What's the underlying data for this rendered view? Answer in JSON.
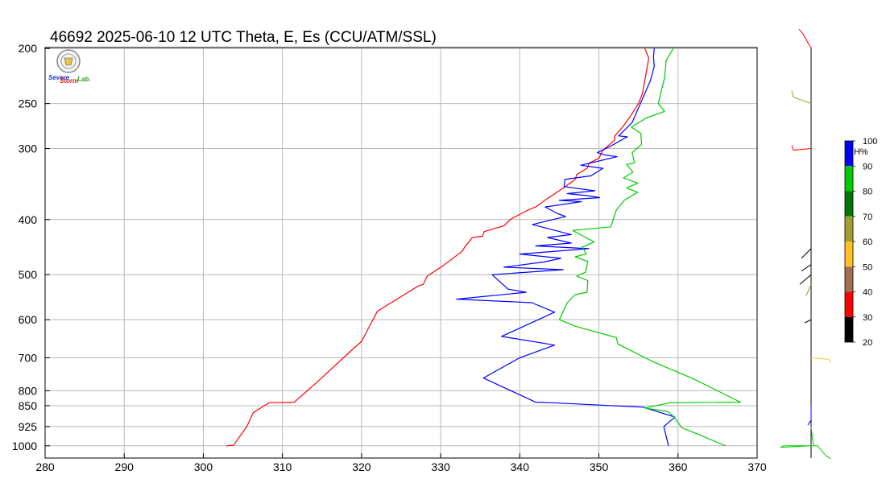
{
  "chart_data": {
    "type": "line",
    "title": "46692  2025-06-10 12 UTC  Theta, E, Es (CCU/ATM/SSL)",
    "xlabel": "",
    "ylabel": "",
    "x_scale": "linear",
    "y_scale": "log-pressure (inverted)",
    "xlim": [
      280,
      370
    ],
    "ylim": [
      1000,
      200
    ],
    "grid": true,
    "x_ticks": [
      "280",
      "290",
      "300",
      "310",
      "320",
      "330",
      "340",
      "350",
      "360",
      "370"
    ],
    "y_ticks": [
      "200",
      "250",
      "300",
      "400",
      "500",
      "600",
      "700",
      "800",
      "850",
      "925",
      "1000"
    ],
    "series": [
      {
        "color": "#ff0000",
        "points": [
          [
            302.9,
            1000
          ],
          [
            303.8,
            998
          ],
          [
            305.5,
            925
          ],
          [
            306.3,
            875
          ],
          [
            308.3,
            840
          ],
          [
            311.5,
            838
          ],
          [
            314.5,
            770
          ],
          [
            318.2,
            690
          ],
          [
            320,
            655
          ],
          [
            322,
            580
          ],
          [
            327,
            525
          ],
          [
            327.8,
            520
          ],
          [
            328.3,
            503
          ],
          [
            330.5,
            480
          ],
          [
            332.7,
            455
          ],
          [
            333,
            448
          ],
          [
            334,
            430
          ],
          [
            335.3,
            428
          ],
          [
            335.5,
            420
          ],
          [
            338,
            410
          ],
          [
            338.8,
            400
          ],
          [
            339.5,
            395
          ],
          [
            341,
            385
          ],
          [
            342,
            380
          ],
          [
            343.4,
            368
          ],
          [
            345.5,
            352
          ],
          [
            347,
            340
          ],
          [
            347.2,
            333
          ],
          [
            348.5,
            325
          ],
          [
            348.8,
            318
          ],
          [
            350,
            312
          ],
          [
            350.5,
            302
          ],
          [
            352,
            290
          ],
          [
            352,
            285
          ],
          [
            353,
            275
          ],
          [
            354,
            263
          ],
          [
            355,
            250
          ],
          [
            355.5,
            240
          ],
          [
            356,
            220
          ],
          [
            356.3,
            208
          ],
          [
            355.8,
            200
          ]
        ]
      },
      {
        "color": "#0000ff",
        "points": [
          [
            358.8,
            1000
          ],
          [
            358.2,
            925
          ],
          [
            359.6,
            890
          ],
          [
            355.6,
            855
          ],
          [
            344,
            840
          ],
          [
            342,
            838
          ],
          [
            335.4,
            760
          ],
          [
            340,
            700
          ],
          [
            344.4,
            665
          ],
          [
            337.7,
            642
          ],
          [
            344.4,
            582
          ],
          [
            341.5,
            560
          ],
          [
            332,
            552
          ],
          [
            340.8,
            537
          ],
          [
            338.5,
            530
          ],
          [
            336.5,
            500
          ],
          [
            345.5,
            490
          ],
          [
            338,
            485
          ],
          [
            343,
            475
          ],
          [
            345.2,
            468
          ],
          [
            340,
            460
          ],
          [
            348.7,
            450
          ],
          [
            342,
            445
          ],
          [
            346.5,
            440
          ],
          [
            343.5,
            430
          ],
          [
            346.5,
            425
          ],
          [
            341.6,
            408
          ],
          [
            345.8,
            395
          ],
          [
            344.7,
            390
          ],
          [
            343.2,
            380
          ],
          [
            347.8,
            372
          ],
          [
            345,
            370
          ],
          [
            350.1,
            366
          ],
          [
            348.5,
            363
          ],
          [
            346,
            360
          ],
          [
            349.5,
            356
          ],
          [
            345.6,
            350
          ],
          [
            345.7,
            340
          ],
          [
            349,
            335
          ],
          [
            350.5,
            325
          ],
          [
            347.7,
            321
          ],
          [
            352.3,
            310
          ],
          [
            350.8,
            308
          ],
          [
            349.8,
            305
          ],
          [
            351.3,
            298
          ],
          [
            353.6,
            286
          ],
          [
            352.5,
            285
          ],
          [
            354.2,
            270
          ],
          [
            356.5,
            228
          ],
          [
            357,
            215
          ],
          [
            356.9,
            207
          ],
          [
            357,
            200
          ]
        ]
      },
      {
        "color": "#00cc00",
        "points": [
          [
            366,
            1000
          ],
          [
            363,
            960
          ],
          [
            360.5,
            930
          ],
          [
            359.5,
            890
          ],
          [
            358.7,
            870
          ],
          [
            355.8,
            858
          ],
          [
            359,
            840
          ],
          [
            367.9,
            838
          ],
          [
            362,
            763
          ],
          [
            356.9,
            712
          ],
          [
            352.4,
            662
          ],
          [
            352.2,
            645
          ],
          [
            347,
            616
          ],
          [
            345,
            600
          ],
          [
            346,
            560
          ],
          [
            347,
            542
          ],
          [
            348.5,
            537
          ],
          [
            348.6,
            512
          ],
          [
            347.2,
            503
          ],
          [
            348.3,
            495
          ],
          [
            348.6,
            474
          ],
          [
            347,
            465
          ],
          [
            348.4,
            460
          ],
          [
            347.9,
            447
          ],
          [
            349.4,
            438
          ],
          [
            346.7,
            418
          ],
          [
            351.5,
            412
          ],
          [
            352.2,
            385
          ],
          [
            353.2,
            370
          ],
          [
            354.9,
            358
          ],
          [
            353.5,
            352
          ],
          [
            354.9,
            345
          ],
          [
            353.1,
            338
          ],
          [
            354.3,
            330
          ],
          [
            353.5,
            320
          ],
          [
            354.5,
            318
          ],
          [
            354.2,
            305
          ],
          [
            355.4,
            295
          ],
          [
            355.3,
            282
          ],
          [
            354.1,
            275
          ],
          [
            356,
            265
          ],
          [
            358.3,
            258
          ],
          [
            357.5,
            250
          ],
          [
            358.3,
            225
          ],
          [
            358.5,
            210
          ],
          [
            359.4,
            200
          ]
        ]
      }
    ],
    "colorbar": {
      "label": "RH%",
      "ticks": [
        "100",
        "90",
        "80",
        "70",
        "60",
        "50",
        "40",
        "30",
        "20"
      ],
      "colors": [
        "#0000ff",
        "#00cc00",
        "#007700",
        "#a0a030",
        "#ffc020",
        "#a07050",
        "#ff0000",
        "#000000"
      ]
    },
    "wind_barbs": [
      {
        "pressure": 200,
        "color": "#ff0000"
      },
      {
        "pressure": 250,
        "color": "#a0a030"
      },
      {
        "pressure": 300,
        "color": "#ff0000"
      },
      {
        "pressure": 450,
        "color": "#000000"
      },
      {
        "pressure": 480,
        "color": "#000000"
      },
      {
        "pressure": 500,
        "color": "#000000"
      },
      {
        "pressure": 520,
        "color": "#a0a030"
      },
      {
        "pressure": 600,
        "color": "#000000"
      },
      {
        "pressure": 700,
        "color": "#ffc020"
      },
      {
        "pressure": 850,
        "color": "#0000ff"
      },
      {
        "pressure": 925,
        "color": "#00cc00"
      },
      {
        "pressure": 1000,
        "color": "#00cc00"
      }
    ],
    "logo": {
      "text_top": "Severe",
      "text_mid": "Storm",
      "text_end": "Lab."
    }
  }
}
